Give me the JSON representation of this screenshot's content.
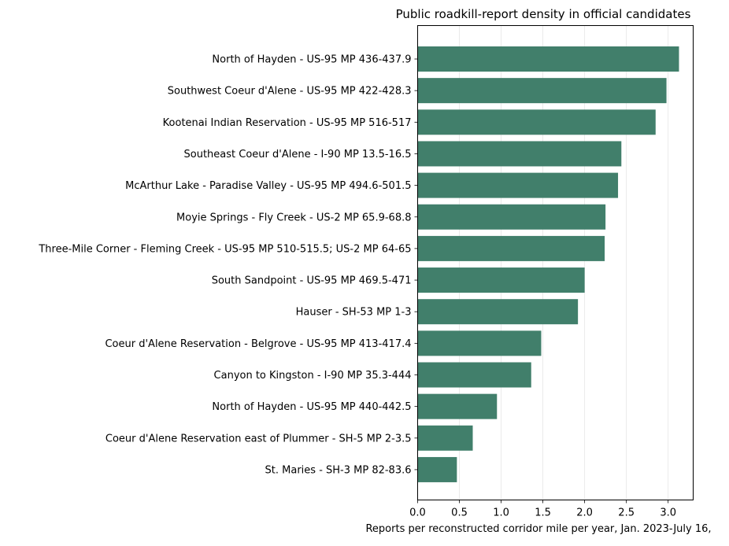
{
  "chart_data": {
    "type": "bar",
    "orientation": "horizontal",
    "title": "Public roadkill-report density in official candidates",
    "xlabel": "Reports per reconstructed corridor mile per year, Jan. 2023-July 16,",
    "ylabel": "",
    "xlim": [
      0,
      3.3
    ],
    "xticks": [
      0.0,
      0.5,
      1.0,
      1.5,
      2.0,
      2.5,
      3.0
    ],
    "xtick_labels": [
      "0.0",
      "0.5",
      "1.0",
      "1.5",
      "2.0",
      "2.5",
      "3.0"
    ],
    "grid": "x-axis vertical gridlines",
    "bar_color": "#417f6b",
    "categories": [
      "North of Hayden - US-95 MP 436-437.9",
      "Southwest Coeur d'Alene - US-95 MP 422-428.3",
      "Kootenai Indian Reservation - US-95 MP 516-517",
      "Southeast Coeur d'Alene - I-90 MP 13.5-16.5",
      "McArthur Lake - Paradise Valley - US-95 MP 494.6-501.5",
      "Moyie Springs - Fly Creek - US-2 MP 65.9-68.8",
      "Three-Mile Corner - Fleming Creek - US-95 MP 510-515.5; US-2 MP 64-65",
      "South Sandpoint - US-95 MP 469.5-471",
      "Hauser - SH-53 MP 1-3",
      "Coeur d'Alene Reservation - Belgrove - US-95 MP 413-417.4",
      "Canyon to Kingston - I-90 MP 35.3-444",
      "North of Hayden - US-95 MP 440-442.5",
      "Coeur d'Alene Reservation east of Plummer - SH-5 MP 2-3.5",
      "St. Maries - SH-3 MP 82-83.6"
    ],
    "values": [
      3.13,
      2.98,
      2.85,
      2.44,
      2.4,
      2.25,
      2.24,
      2.0,
      1.92,
      1.48,
      1.36,
      0.95,
      0.66,
      0.47
    ]
  }
}
